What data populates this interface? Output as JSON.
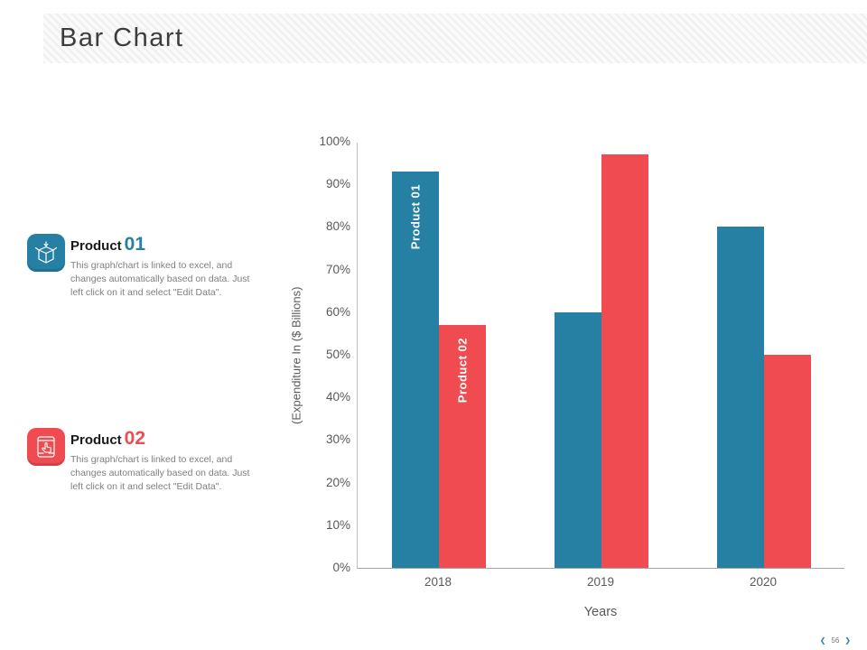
{
  "slide": {
    "title": "Bar Chart",
    "nav": {
      "prev_icon": "❮",
      "page": "56",
      "next_icon": "❯"
    }
  },
  "products": [
    {
      "label": "Product",
      "number": "01",
      "color": "#2580a3",
      "icon": "open-box-icon",
      "description": "This graph/chart is linked to excel, and changes automatically based on data. Just left click on it and select \"Edit Data\"."
    },
    {
      "label": "Product",
      "number": "02",
      "color": "#ef4b50",
      "icon": "tap-tablet-icon",
      "description": "This graph/chart is linked to excel, and changes automatically based on data. Just left click on it and select \"Edit Data\"."
    }
  ],
  "chart_data": {
    "type": "bar",
    "categories": [
      "2018",
      "2019",
      "2020"
    ],
    "series": [
      {
        "name": "Product 01",
        "color": "#2580a3",
        "values": [
          93,
          60,
          80
        ]
      },
      {
        "name": "Product 02",
        "color": "#ef4b50",
        "values": [
          57,
          97,
          50
        ]
      }
    ],
    "title": "",
    "xlabel": "Years",
    "ylabel": "(Expenditure In ($ Billions)",
    "ylim": [
      0,
      100
    ],
    "yticks": [
      "100%",
      "90%",
      "80%",
      "70%",
      "60%",
      "50%",
      "40%",
      "30%",
      "20%",
      "10%",
      "0%"
    ],
    "grid": false,
    "legend": "series names shown vertically inside first category bars"
  }
}
